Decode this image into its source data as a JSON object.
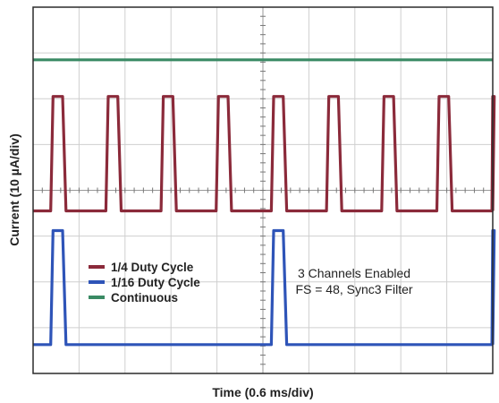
{
  "chart_data": {
    "type": "line",
    "title": "",
    "xlabel": "Time (0.6 ms/div)",
    "ylabel": "Current (10 µA/div)",
    "x_unit": "ms",
    "x_per_div": 0.6,
    "y_unit": "µA",
    "y_per_div": 10,
    "xlim": [
      0,
      6
    ],
    "ylim": [
      0,
      80
    ],
    "grid": true,
    "x_divisions": 10,
    "y_divisions": 8,
    "series": [
      {
        "name": "1/4 Duty Cycle",
        "color": "#8b2a3a",
        "low": 35.5,
        "high": 60.5,
        "pulse_starts_ms": [
          0.23,
          0.95,
          1.67,
          2.39,
          3.11,
          3.83,
          4.55,
          5.27,
          5.99
        ],
        "pulse_width_ms": 0.17
      },
      {
        "name": "1/16 Duty Cycle",
        "color": "#2e54b8",
        "low": 6.3,
        "high": 31.2,
        "pulse_starts_ms": [
          0.23,
          3.11,
          5.99
        ],
        "pulse_width_ms": 0.17
      },
      {
        "name": "Continuous",
        "color": "#3a8a64",
        "low": 68.5,
        "high": 68.5,
        "pulse_starts_ms": [],
        "pulse_width_ms": 0
      }
    ],
    "legend": [
      "1/4 Duty Cycle",
      "1/16 Duty Cycle",
      "Continuous"
    ],
    "legend_position": "lower-left",
    "annotation": [
      "3 Channels Enabled",
      "FS = 48, Sync3 Filter"
    ]
  }
}
